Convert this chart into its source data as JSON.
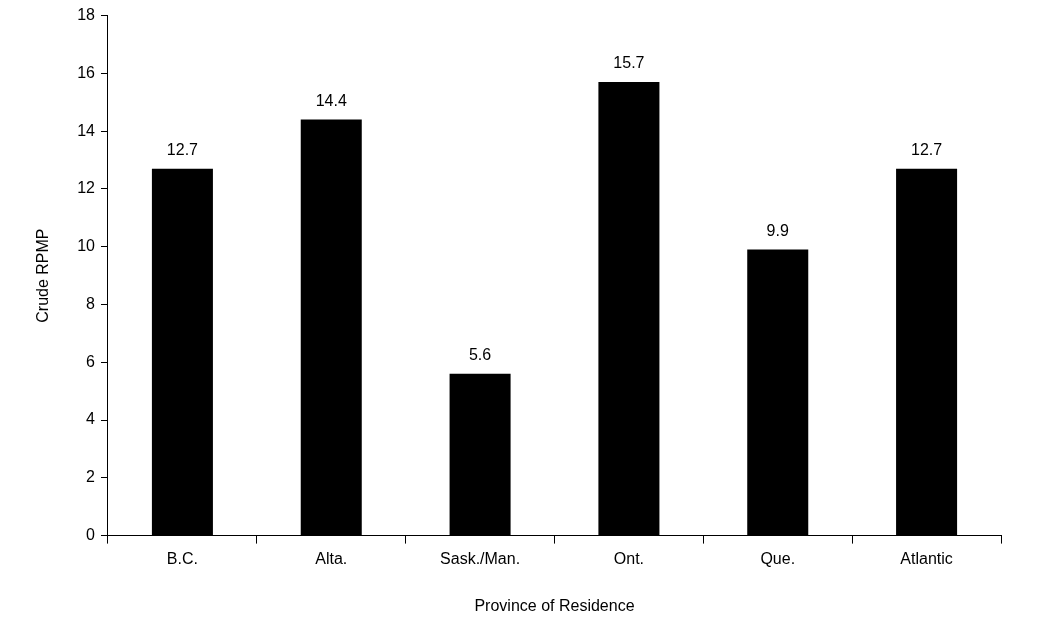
{
  "chart_data": {
    "type": "bar",
    "xlabel": "Province of Residence",
    "ylabel": "Crude RPMP",
    "categories": [
      "B.C.",
      "Alta.",
      "Sask./Man.",
      "Ont.",
      "Que.",
      "Atlantic"
    ],
    "values": [
      12.7,
      14.4,
      5.6,
      15.7,
      9.9,
      12.7
    ],
    "color": "#000000",
    "ylim": [
      0,
      18
    ],
    "yticks": [
      0,
      2,
      4,
      6,
      8,
      10,
      12,
      14,
      16,
      18
    ],
    "grid": false,
    "legend": false,
    "data_labels": true
  }
}
